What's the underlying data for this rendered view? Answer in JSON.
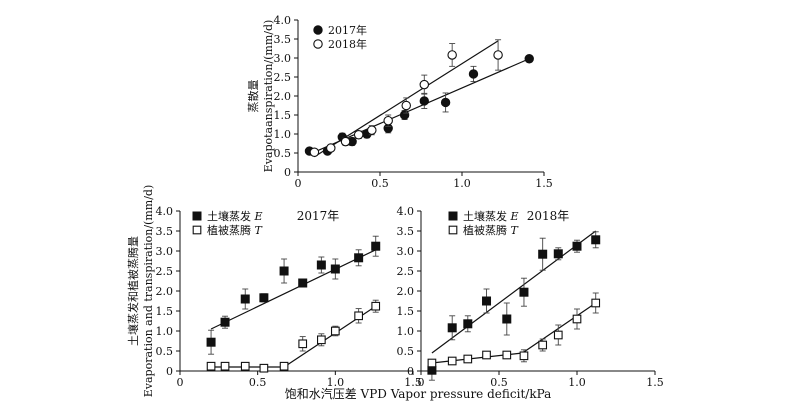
{
  "figure": {
    "shared_xlabel": "饱和水汽压差  VPD  Vapor pressure deficit/kPa"
  },
  "chart_data": [
    {
      "type": "scatter",
      "panel": "top",
      "xlim": [
        0,
        1.5
      ],
      "ylim": [
        0,
        4.0
      ],
      "xticks": [
        "0",
        "0.5",
        "1.0",
        "1.5"
      ],
      "yticks": [
        "0",
        "0.5",
        "1.0",
        "1.5",
        "2.0",
        "2.5",
        "3.0",
        "3.5",
        "4.0"
      ],
      "ylabel_cn": "蒸散量",
      "ylabel_en": "Evapotaanspiration/(mm/d)",
      "legend_position": "top-left",
      "series": [
        {
          "name": "2017年",
          "marker": "filled-circle",
          "points": [
            {
              "x": 0.07,
              "y": 0.55,
              "err": 0.06
            },
            {
              "x": 0.18,
              "y": 0.55,
              "err": 0.06
            },
            {
              "x": 0.27,
              "y": 0.92,
              "err": 0.1
            },
            {
              "x": 0.33,
              "y": 0.8,
              "err": 0.1
            },
            {
              "x": 0.42,
              "y": 1.0,
              "err": 0.1
            },
            {
              "x": 0.55,
              "y": 1.15,
              "err": 0.12
            },
            {
              "x": 0.65,
              "y": 1.5,
              "err": 0.12
            },
            {
              "x": 0.77,
              "y": 1.87,
              "err": 0.2
            },
            {
              "x": 0.9,
              "y": 1.83,
              "err": 0.25
            },
            {
              "x": 1.07,
              "y": 2.58,
              "err": 0.2
            },
            {
              "x": 1.41,
              "y": 2.98,
              "err": 0.03
            }
          ],
          "fit": [
            [
              0.07,
              0.47
            ],
            [
              1.41,
              2.98
            ]
          ]
        },
        {
          "name": "2018年",
          "marker": "open-circle",
          "points": [
            {
              "x": 0.1,
              "y": 0.52,
              "err": 0.06
            },
            {
              "x": 0.2,
              "y": 0.63,
              "err": 0.08
            },
            {
              "x": 0.29,
              "y": 0.8,
              "err": 0.1
            },
            {
              "x": 0.37,
              "y": 0.98,
              "err": 0.1
            },
            {
              "x": 0.45,
              "y": 1.1,
              "err": 0.12
            },
            {
              "x": 0.55,
              "y": 1.35,
              "err": 0.15
            },
            {
              "x": 0.66,
              "y": 1.75,
              "err": 0.2
            },
            {
              "x": 0.77,
              "y": 2.3,
              "err": 0.25
            },
            {
              "x": 0.94,
              "y": 3.08,
              "err": 0.3
            },
            {
              "x": 1.22,
              "y": 3.08,
              "err": 0.4
            }
          ],
          "fit": [
            [
              0.1,
              0.4
            ],
            [
              1.22,
              3.45
            ]
          ]
        }
      ]
    },
    {
      "type": "scatter",
      "panel": "bottom-left",
      "annotation": "2017年",
      "xlim": [
        0,
        1.5
      ],
      "ylim": [
        0,
        4.0
      ],
      "xticks": [
        "0",
        "0.5",
        "1.0",
        "1.5"
      ],
      "yticks": [
        "0",
        "0.5",
        "1.0",
        "1.5",
        "2.0",
        "2.5",
        "3.0",
        "3.5",
        "4.0"
      ],
      "ylabel_cn": "土壤蒸发和植被蒸腾量",
      "ylabel_en": "Evaporation and transpiration/(mm/d)",
      "legend_position": "top-left",
      "series": [
        {
          "name": "土壤蒸发 E",
          "legend_text": "土壤蒸发 ",
          "legend_symbol": "E",
          "marker": "filled-square",
          "points": [
            {
              "x": 0.2,
              "y": 0.72,
              "err": 0.3
            },
            {
              "x": 0.29,
              "y": 1.22,
              "err": 0.15
            },
            {
              "x": 0.42,
              "y": 1.8,
              "err": 0.25
            },
            {
              "x": 0.54,
              "y": 1.83,
              "err": 0.1
            },
            {
              "x": 0.67,
              "y": 2.5,
              "err": 0.3
            },
            {
              "x": 0.79,
              "y": 2.2,
              "err": 0.1
            },
            {
              "x": 0.91,
              "y": 2.65,
              "err": 0.2
            },
            {
              "x": 1.0,
              "y": 2.55,
              "err": 0.25
            },
            {
              "x": 1.15,
              "y": 2.83,
              "err": 0.2
            },
            {
              "x": 1.26,
              "y": 3.12,
              "err": 0.25
            }
          ],
          "fit": [
            [
              0.2,
              1.05
            ],
            [
              1.26,
              3.03
            ]
          ]
        },
        {
          "name": "植被蒸腾 T",
          "legend_text": "植被蒸腾 ",
          "legend_symbol": "T",
          "marker": "open-square",
          "points": [
            {
              "x": 0.2,
              "y": 0.12,
              "err": 0.03
            },
            {
              "x": 0.29,
              "y": 0.12,
              "err": 0.03
            },
            {
              "x": 0.42,
              "y": 0.12,
              "err": 0.03
            },
            {
              "x": 0.54,
              "y": 0.07,
              "err": 0.03
            },
            {
              "x": 0.67,
              "y": 0.12,
              "err": 0.08
            },
            {
              "x": 0.79,
              "y": 0.68,
              "err": 0.18
            },
            {
              "x": 0.91,
              "y": 0.78,
              "err": 0.15
            },
            {
              "x": 1.0,
              "y": 1.0,
              "err": 0.12
            },
            {
              "x": 1.15,
              "y": 1.38,
              "err": 0.18
            },
            {
              "x": 1.26,
              "y": 1.62,
              "err": 0.15
            }
          ],
          "fit": [
            [
              0.2,
              0.1
            ],
            [
              0.67,
              0.1
            ],
            [
              1.26,
              1.62
            ]
          ]
        }
      ]
    },
    {
      "type": "scatter",
      "panel": "bottom-right",
      "annotation": "2018年",
      "xlim": [
        0,
        1.5
      ],
      "ylim": [
        0,
        4.0
      ],
      "xticks": [
        "0",
        "0.5",
        "1.0",
        "1.5"
      ],
      "yticks": [
        "0",
        "0.5",
        "1.0",
        "1.5",
        "2.0",
        "2.5",
        "3.0",
        "3.5",
        "4.0"
      ],
      "legend_position": "top-left",
      "series": [
        {
          "name": "土壤蒸发 E",
          "legend_text": "土壤蒸发 ",
          "legend_symbol": "E",
          "marker": "filled-square",
          "points": [
            {
              "x": 0.07,
              "y": 0.02,
              "err": 0.25
            },
            {
              "x": 0.2,
              "y": 1.08,
              "err": 0.3
            },
            {
              "x": 0.3,
              "y": 1.18,
              "err": 0.2
            },
            {
              "x": 0.42,
              "y": 1.75,
              "err": 0.3
            },
            {
              "x": 0.55,
              "y": 1.3,
              "err": 0.4
            },
            {
              "x": 0.66,
              "y": 1.97,
              "err": 0.35
            },
            {
              "x": 0.78,
              "y": 2.92,
              "err": 0.4
            },
            {
              "x": 0.88,
              "y": 2.93,
              "err": 0.15
            },
            {
              "x": 1.0,
              "y": 3.12,
              "err": 0.15
            },
            {
              "x": 1.12,
              "y": 3.28,
              "err": 0.2
            }
          ],
          "fit": [
            [
              0.07,
              0.45
            ],
            [
              1.12,
              3.5
            ]
          ]
        },
        {
          "name": "植被蒸腾 T",
          "legend_text": "植被蒸腾 ",
          "legend_symbol": "T",
          "marker": "open-square",
          "points": [
            {
              "x": 0.07,
              "y": 0.2,
              "err": 0.03
            },
            {
              "x": 0.2,
              "y": 0.25,
              "err": 0.05
            },
            {
              "x": 0.3,
              "y": 0.3,
              "err": 0.05
            },
            {
              "x": 0.42,
              "y": 0.4,
              "err": 0.05
            },
            {
              "x": 0.55,
              "y": 0.4,
              "err": 0.08
            },
            {
              "x": 0.66,
              "y": 0.38,
              "err": 0.15
            },
            {
              "x": 0.78,
              "y": 0.65,
              "err": 0.15
            },
            {
              "x": 0.88,
              "y": 0.9,
              "err": 0.25
            },
            {
              "x": 1.0,
              "y": 1.3,
              "err": 0.25
            },
            {
              "x": 1.12,
              "y": 1.7,
              "err": 0.25
            }
          ],
          "fit": [
            [
              0.07,
              0.2
            ],
            [
              0.65,
              0.45
            ],
            [
              1.12,
              1.7
            ]
          ]
        }
      ]
    }
  ]
}
